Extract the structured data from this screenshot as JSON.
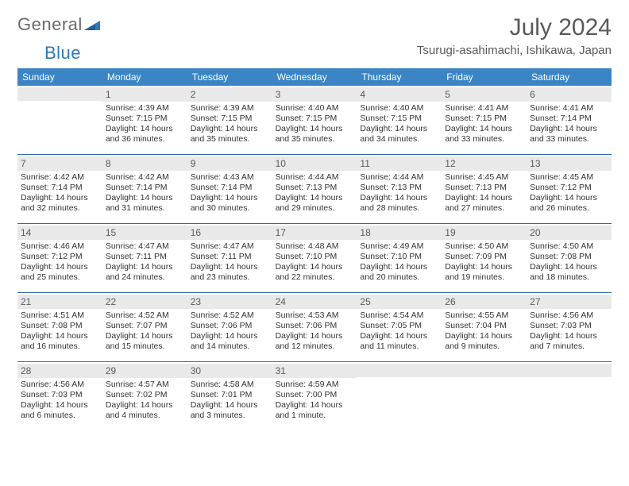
{
  "logo": {
    "text1": "General",
    "text2": "Blue"
  },
  "title": "July 2024",
  "location": "Tsurugi-asahimachi, Ishikawa, Japan",
  "colors": {
    "header_bg": "#3b85c6",
    "header_text": "#ffffff",
    "daynum_bg": "#e9e9e9",
    "daynum_text": "#5a5a5a",
    "rule": "#2f6aa3",
    "body_text": "#333333",
    "logo_gray": "#6b6b6b",
    "logo_blue": "#2f79b9"
  },
  "weekdays": [
    "Sunday",
    "Monday",
    "Tuesday",
    "Wednesday",
    "Thursday",
    "Friday",
    "Saturday"
  ],
  "weeks": [
    [
      null,
      {
        "n": "1",
        "sr": "Sunrise: 4:39 AM",
        "ss": "Sunset: 7:15 PM",
        "d1": "Daylight: 14 hours",
        "d2": "and 36 minutes."
      },
      {
        "n": "2",
        "sr": "Sunrise: 4:39 AM",
        "ss": "Sunset: 7:15 PM",
        "d1": "Daylight: 14 hours",
        "d2": "and 35 minutes."
      },
      {
        "n": "3",
        "sr": "Sunrise: 4:40 AM",
        "ss": "Sunset: 7:15 PM",
        "d1": "Daylight: 14 hours",
        "d2": "and 35 minutes."
      },
      {
        "n": "4",
        "sr": "Sunrise: 4:40 AM",
        "ss": "Sunset: 7:15 PM",
        "d1": "Daylight: 14 hours",
        "d2": "and 34 minutes."
      },
      {
        "n": "5",
        "sr": "Sunrise: 4:41 AM",
        "ss": "Sunset: 7:15 PM",
        "d1": "Daylight: 14 hours",
        "d2": "and 33 minutes."
      },
      {
        "n": "6",
        "sr": "Sunrise: 4:41 AM",
        "ss": "Sunset: 7:14 PM",
        "d1": "Daylight: 14 hours",
        "d2": "and 33 minutes."
      }
    ],
    [
      {
        "n": "7",
        "sr": "Sunrise: 4:42 AM",
        "ss": "Sunset: 7:14 PM",
        "d1": "Daylight: 14 hours",
        "d2": "and 32 minutes."
      },
      {
        "n": "8",
        "sr": "Sunrise: 4:42 AM",
        "ss": "Sunset: 7:14 PM",
        "d1": "Daylight: 14 hours",
        "d2": "and 31 minutes."
      },
      {
        "n": "9",
        "sr": "Sunrise: 4:43 AM",
        "ss": "Sunset: 7:14 PM",
        "d1": "Daylight: 14 hours",
        "d2": "and 30 minutes."
      },
      {
        "n": "10",
        "sr": "Sunrise: 4:44 AM",
        "ss": "Sunset: 7:13 PM",
        "d1": "Daylight: 14 hours",
        "d2": "and 29 minutes."
      },
      {
        "n": "11",
        "sr": "Sunrise: 4:44 AM",
        "ss": "Sunset: 7:13 PM",
        "d1": "Daylight: 14 hours",
        "d2": "and 28 minutes."
      },
      {
        "n": "12",
        "sr": "Sunrise: 4:45 AM",
        "ss": "Sunset: 7:13 PM",
        "d1": "Daylight: 14 hours",
        "d2": "and 27 minutes."
      },
      {
        "n": "13",
        "sr": "Sunrise: 4:45 AM",
        "ss": "Sunset: 7:12 PM",
        "d1": "Daylight: 14 hours",
        "d2": "and 26 minutes."
      }
    ],
    [
      {
        "n": "14",
        "sr": "Sunrise: 4:46 AM",
        "ss": "Sunset: 7:12 PM",
        "d1": "Daylight: 14 hours",
        "d2": "and 25 minutes."
      },
      {
        "n": "15",
        "sr": "Sunrise: 4:47 AM",
        "ss": "Sunset: 7:11 PM",
        "d1": "Daylight: 14 hours",
        "d2": "and 24 minutes."
      },
      {
        "n": "16",
        "sr": "Sunrise: 4:47 AM",
        "ss": "Sunset: 7:11 PM",
        "d1": "Daylight: 14 hours",
        "d2": "and 23 minutes."
      },
      {
        "n": "17",
        "sr": "Sunrise: 4:48 AM",
        "ss": "Sunset: 7:10 PM",
        "d1": "Daylight: 14 hours",
        "d2": "and 22 minutes."
      },
      {
        "n": "18",
        "sr": "Sunrise: 4:49 AM",
        "ss": "Sunset: 7:10 PM",
        "d1": "Daylight: 14 hours",
        "d2": "and 20 minutes."
      },
      {
        "n": "19",
        "sr": "Sunrise: 4:50 AM",
        "ss": "Sunset: 7:09 PM",
        "d1": "Daylight: 14 hours",
        "d2": "and 19 minutes."
      },
      {
        "n": "20",
        "sr": "Sunrise: 4:50 AM",
        "ss": "Sunset: 7:08 PM",
        "d1": "Daylight: 14 hours",
        "d2": "and 18 minutes."
      }
    ],
    [
      {
        "n": "21",
        "sr": "Sunrise: 4:51 AM",
        "ss": "Sunset: 7:08 PM",
        "d1": "Daylight: 14 hours",
        "d2": "and 16 minutes."
      },
      {
        "n": "22",
        "sr": "Sunrise: 4:52 AM",
        "ss": "Sunset: 7:07 PM",
        "d1": "Daylight: 14 hours",
        "d2": "and 15 minutes."
      },
      {
        "n": "23",
        "sr": "Sunrise: 4:52 AM",
        "ss": "Sunset: 7:06 PM",
        "d1": "Daylight: 14 hours",
        "d2": "and 14 minutes."
      },
      {
        "n": "24",
        "sr": "Sunrise: 4:53 AM",
        "ss": "Sunset: 7:06 PM",
        "d1": "Daylight: 14 hours",
        "d2": "and 12 minutes."
      },
      {
        "n": "25",
        "sr": "Sunrise: 4:54 AM",
        "ss": "Sunset: 7:05 PM",
        "d1": "Daylight: 14 hours",
        "d2": "and 11 minutes."
      },
      {
        "n": "26",
        "sr": "Sunrise: 4:55 AM",
        "ss": "Sunset: 7:04 PM",
        "d1": "Daylight: 14 hours",
        "d2": "and 9 minutes."
      },
      {
        "n": "27",
        "sr": "Sunrise: 4:56 AM",
        "ss": "Sunset: 7:03 PM",
        "d1": "Daylight: 14 hours",
        "d2": "and 7 minutes."
      }
    ],
    [
      {
        "n": "28",
        "sr": "Sunrise: 4:56 AM",
        "ss": "Sunset: 7:03 PM",
        "d1": "Daylight: 14 hours",
        "d2": "and 6 minutes."
      },
      {
        "n": "29",
        "sr": "Sunrise: 4:57 AM",
        "ss": "Sunset: 7:02 PM",
        "d1": "Daylight: 14 hours",
        "d2": "and 4 minutes."
      },
      {
        "n": "30",
        "sr": "Sunrise: 4:58 AM",
        "ss": "Sunset: 7:01 PM",
        "d1": "Daylight: 14 hours",
        "d2": "and 3 minutes."
      },
      {
        "n": "31",
        "sr": "Sunrise: 4:59 AM",
        "ss": "Sunset: 7:00 PM",
        "d1": "Daylight: 14 hours",
        "d2": "and 1 minute."
      },
      null,
      null,
      null
    ]
  ]
}
